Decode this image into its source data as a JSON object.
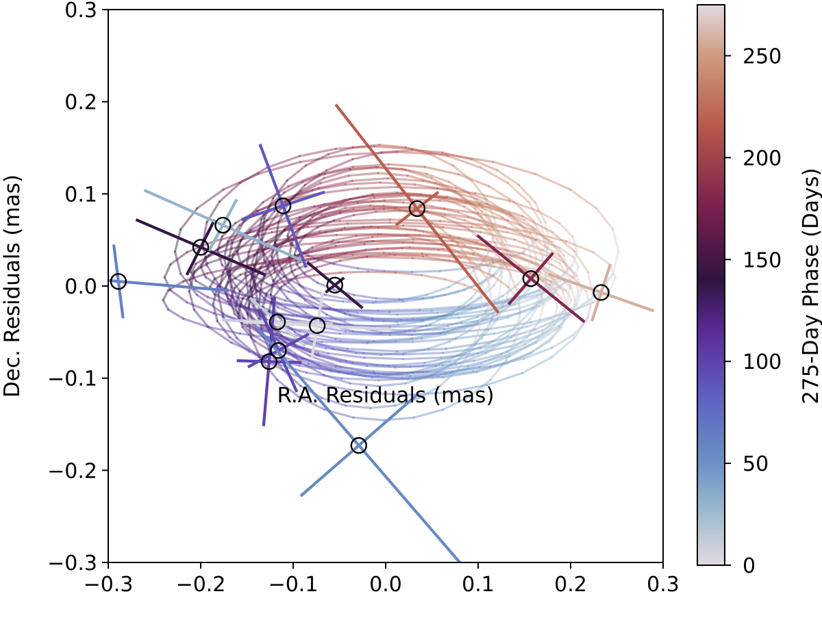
{
  "chart_data": {
    "type": "scatter",
    "title": "",
    "xlabel": "R.A. Residuals (mas)",
    "ylabel": "Dec. Residuals (mas)",
    "xlim": [
      -0.3,
      0.3
    ],
    "ylim": [
      -0.3,
      0.3
    ],
    "xticks": [
      -0.3,
      -0.2,
      -0.1,
      0.0,
      0.1,
      0.2,
      0.3
    ],
    "yticks": [
      -0.3,
      -0.2,
      -0.1,
      0.0,
      0.1,
      0.2,
      0.3
    ],
    "xtick_labels": [
      "−0.3",
      "−0.2",
      "−0.1",
      "0.0",
      "0.1",
      "0.2",
      "0.3"
    ],
    "ytick_labels": [
      "−0.3",
      "−0.2",
      "−0.1",
      "0.0",
      "0.1",
      "0.2",
      "0.3"
    ],
    "grid": false,
    "colorbar": {
      "label": "275-Day Phase (Days)",
      "range": [
        0,
        275
      ],
      "ticks": [
        0,
        50,
        100,
        150,
        200,
        250
      ],
      "tick_labels": [
        "0",
        "50",
        "100",
        "150",
        "200",
        "250"
      ],
      "colormap": "twilight",
      "stops": [
        {
          "value": 0,
          "color": "#e2d9e2"
        },
        {
          "value": 25,
          "color": "#9fbcce"
        },
        {
          "value": 50,
          "color": "#6a92c6"
        },
        {
          "value": 85,
          "color": "#5f5cc0"
        },
        {
          "value": 115,
          "color": "#5a2a96"
        },
        {
          "value": 140,
          "color": "#2f1440"
        },
        {
          "value": 175,
          "color": "#7a1f4f"
        },
        {
          "value": 215,
          "color": "#b8584a"
        },
        {
          "value": 250,
          "color": "#cf9b7f"
        },
        {
          "value": 275,
          "color": "#e2d9e2"
        }
      ]
    },
    "orbit_model": {
      "count": 40,
      "center_ra": 0.0,
      "center_dec": 0.0,
      "semi_ra_range": [
        0.11,
        0.25
      ],
      "semi_dec_range": [
        0.035,
        0.12
      ],
      "dec_offset_range": [
        -0.03,
        0.06
      ]
    },
    "points": [
      {
        "ra": -0.289,
        "dec": 0.005,
        "phase": 62,
        "err_major": [
          -0.12,
          0.01
        ],
        "err_minor": [
          0.005,
          -0.04
        ]
      },
      {
        "ra": -0.2,
        "dec": 0.042,
        "phase": 138,
        "err_major": [
          -0.07,
          0.03
        ],
        "err_minor": [
          0.015,
          0.03
        ]
      },
      {
        "ra": -0.176,
        "dec": 0.066,
        "phase": 30,
        "err_major": [
          -0.085,
          0.038
        ],
        "err_minor": [
          0.015,
          0.028
        ]
      },
      {
        "ra": -0.111,
        "dec": 0.087,
        "phase": 88,
        "err_major": [
          -0.025,
          0.067
        ],
        "err_minor": [
          0.045,
          0.015
        ]
      },
      {
        "ra": -0.055,
        "dec": 0.001,
        "phase": 145,
        "err_major": [
          -0.03,
          0.025
        ],
        "err_minor": [
          0.01,
          0.008
        ]
      },
      {
        "ra": -0.117,
        "dec": -0.039,
        "phase": 10,
        "err_major": [
          -0.03,
          0.026
        ],
        "err_minor": [
          0.06,
          -0.002
        ]
      },
      {
        "ra": -0.074,
        "dec": -0.043,
        "phase": 2,
        "err_major": [
          0.08,
          -0.004
        ],
        "err_minor": [
          0.006,
          0.036
        ]
      },
      {
        "ra": -0.126,
        "dec": -0.082,
        "phase": 100,
        "err_major": [
          0.006,
          0.07
        ],
        "err_minor": [
          0.035,
          -0.001
        ]
      },
      {
        "ra": -0.116,
        "dec": -0.07,
        "phase": 95,
        "err_major": [
          0.02,
          -0.045
        ],
        "err_minor": [
          0.033,
          0.018
        ]
      },
      {
        "ra": -0.029,
        "dec": -0.173,
        "phase": 55,
        "err_major": [
          0.11,
          -0.128
        ],
        "err_minor": [
          0.063,
          0.055
        ]
      },
      {
        "ra": 0.034,
        "dec": 0.084,
        "phase": 218,
        "err_major": [
          0.088,
          -0.113
        ],
        "err_minor": [
          0.023,
          0.018
        ]
      },
      {
        "ra": 0.157,
        "dec": 0.008,
        "phase": 180,
        "err_major": [
          0.058,
          -0.047
        ],
        "err_minor": [
          0.024,
          0.028
        ]
      },
      {
        "ra": 0.233,
        "dec": -0.007,
        "phase": 258,
        "err_major": [
          0.057,
          -0.02
        ],
        "err_minor": [
          0.01,
          0.031
        ]
      }
    ]
  }
}
